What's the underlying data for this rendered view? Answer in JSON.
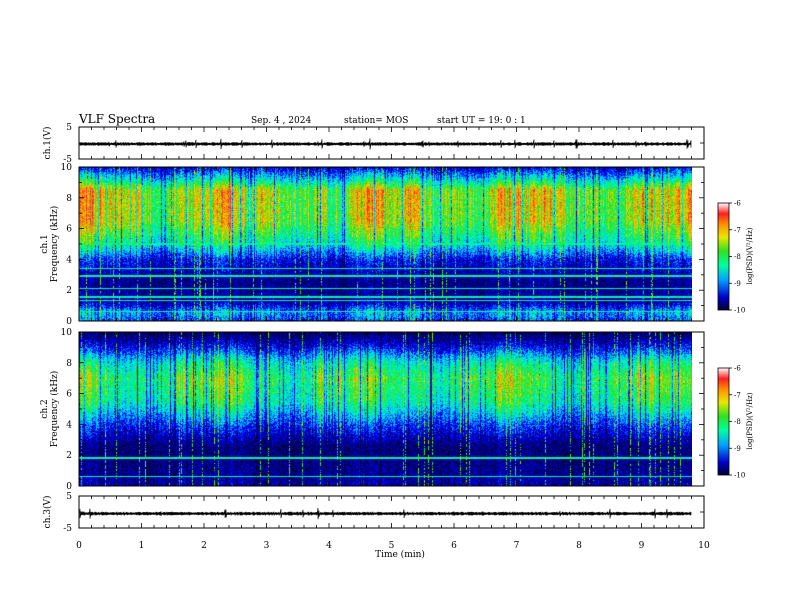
{
  "header": {
    "title": "VLF Spectra",
    "date": "Sep. 4 , 2024",
    "station": "station= MOS",
    "start": "start UT =  19: 0 : 1"
  },
  "chart_data": [
    {
      "id": "ch1-waveform",
      "type": "line",
      "ylabel": "ch.1(V)",
      "ylim": [
        -5,
        5
      ],
      "yticks": [
        "5",
        "-5"
      ],
      "xlim": [
        0,
        10
      ],
      "baseline": -0.3,
      "color": "#000000"
    },
    {
      "id": "ch1-spectrogram",
      "type": "heatmap",
      "ylabel": "ch.1\nFrequency (kHz)",
      "ylabel_lines": [
        "ch.1",
        "Frequency (kHz)"
      ],
      "ylim": [
        0,
        10
      ],
      "yticks": [
        "0",
        "2",
        "4",
        "6",
        "8",
        "10"
      ],
      "xlim": [
        0,
        10
      ],
      "data_end_min": 9.8,
      "band_profile": [
        {
          "f": 0,
          "v": 0.35
        },
        {
          "f": 0.5,
          "v": 0.45
        },
        {
          "f": 1.2,
          "v": 0.2
        },
        {
          "f": 2.5,
          "v": 0.15
        },
        {
          "f": 4,
          "v": 0.3
        },
        {
          "f": 5,
          "v": 0.6
        },
        {
          "f": 6.5,
          "v": 0.85
        },
        {
          "f": 8.5,
          "v": 0.88
        },
        {
          "f": 9.2,
          "v": 0.55
        },
        {
          "f": 10,
          "v": 0.25
        }
      ],
      "colorbar": {
        "label": "log(PSD)(V²/Hz)",
        "ticks": [
          "-6",
          "-7",
          "-8",
          "-9",
          "-10"
        ],
        "range": [
          -10,
          -6
        ]
      }
    },
    {
      "id": "ch2-spectrogram",
      "type": "heatmap",
      "ylabel": "ch.2\nFrequency (kHz)",
      "ylabel_lines": [
        "ch.2",
        "Frequency (kHz)"
      ],
      "ylim": [
        0,
        10
      ],
      "yticks": [
        "0",
        "2",
        "4",
        "6",
        "8",
        "10"
      ],
      "xlim": [
        0,
        10
      ],
      "data_end_min": 9.8,
      "band_profile": [
        {
          "f": 0,
          "v": 0.2
        },
        {
          "f": 1,
          "v": 0.15
        },
        {
          "f": 2.5,
          "v": 0.12
        },
        {
          "f": 4,
          "v": 0.35
        },
        {
          "f": 5.5,
          "v": 0.65
        },
        {
          "f": 7,
          "v": 0.75
        },
        {
          "f": 8,
          "v": 0.6
        },
        {
          "f": 9,
          "v": 0.3
        },
        {
          "f": 10,
          "v": 0.08
        }
      ],
      "colorbar": {
        "label": "log(PSD)(V²/Hz)",
        "ticks": [
          "-6",
          "-7",
          "-8",
          "-9",
          "-10"
        ],
        "range": [
          -10,
          -6
        ]
      }
    },
    {
      "id": "ch3-waveform",
      "type": "line",
      "ylabel": "ch.3(V)",
      "ylim": [
        -5,
        5
      ],
      "yticks": [
        "5",
        "-5"
      ],
      "xlim": [
        0,
        10
      ],
      "baseline": -0.5,
      "color": "#000000"
    }
  ],
  "x_axis": {
    "label": "Time (min)",
    "ticks": [
      "0",
      "1",
      "2",
      "3",
      "4",
      "5",
      "6",
      "7",
      "8",
      "9",
      "10"
    ],
    "range": [
      0,
      10
    ]
  },
  "colormap": [
    "#000033",
    "#00008b",
    "#0000ff",
    "#00bfff",
    "#00ffb0",
    "#20e020",
    "#e0e000",
    "#ff9000",
    "#ff2020",
    "#ffffff"
  ]
}
